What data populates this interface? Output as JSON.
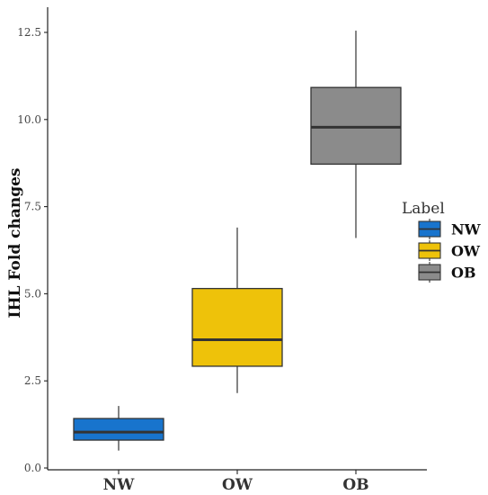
{
  "chart_data": {
    "type": "boxplot",
    "title": "",
    "xlabel": "",
    "ylabel": "IHL Fold changes",
    "ylim": [
      0,
      13.0
    ],
    "yticks": [
      "0.0",
      "2.5",
      "5.0",
      "7.5",
      "10.0",
      "12.5"
    ],
    "grid": false,
    "legend": {
      "title": "Label",
      "position": "right"
    },
    "categories": [
      "NW",
      "OW",
      "OB"
    ],
    "series": [
      {
        "name": "NW",
        "color": "#1874CD",
        "whisker_low": 0.5,
        "q1": 0.8,
        "median": 1.03,
        "q3": 1.42,
        "whisker_high": 1.78
      },
      {
        "name": "OW",
        "color": "#EEC20A",
        "whisker_low": 2.15,
        "q1": 2.92,
        "median": 3.68,
        "q3": 5.15,
        "whisker_high": 6.9
      },
      {
        "name": "OB",
        "color": "#8B8B8B",
        "whisker_low": 6.6,
        "q1": 8.72,
        "median": 9.78,
        "q3": 10.92,
        "whisker_high": 12.55
      }
    ]
  }
}
